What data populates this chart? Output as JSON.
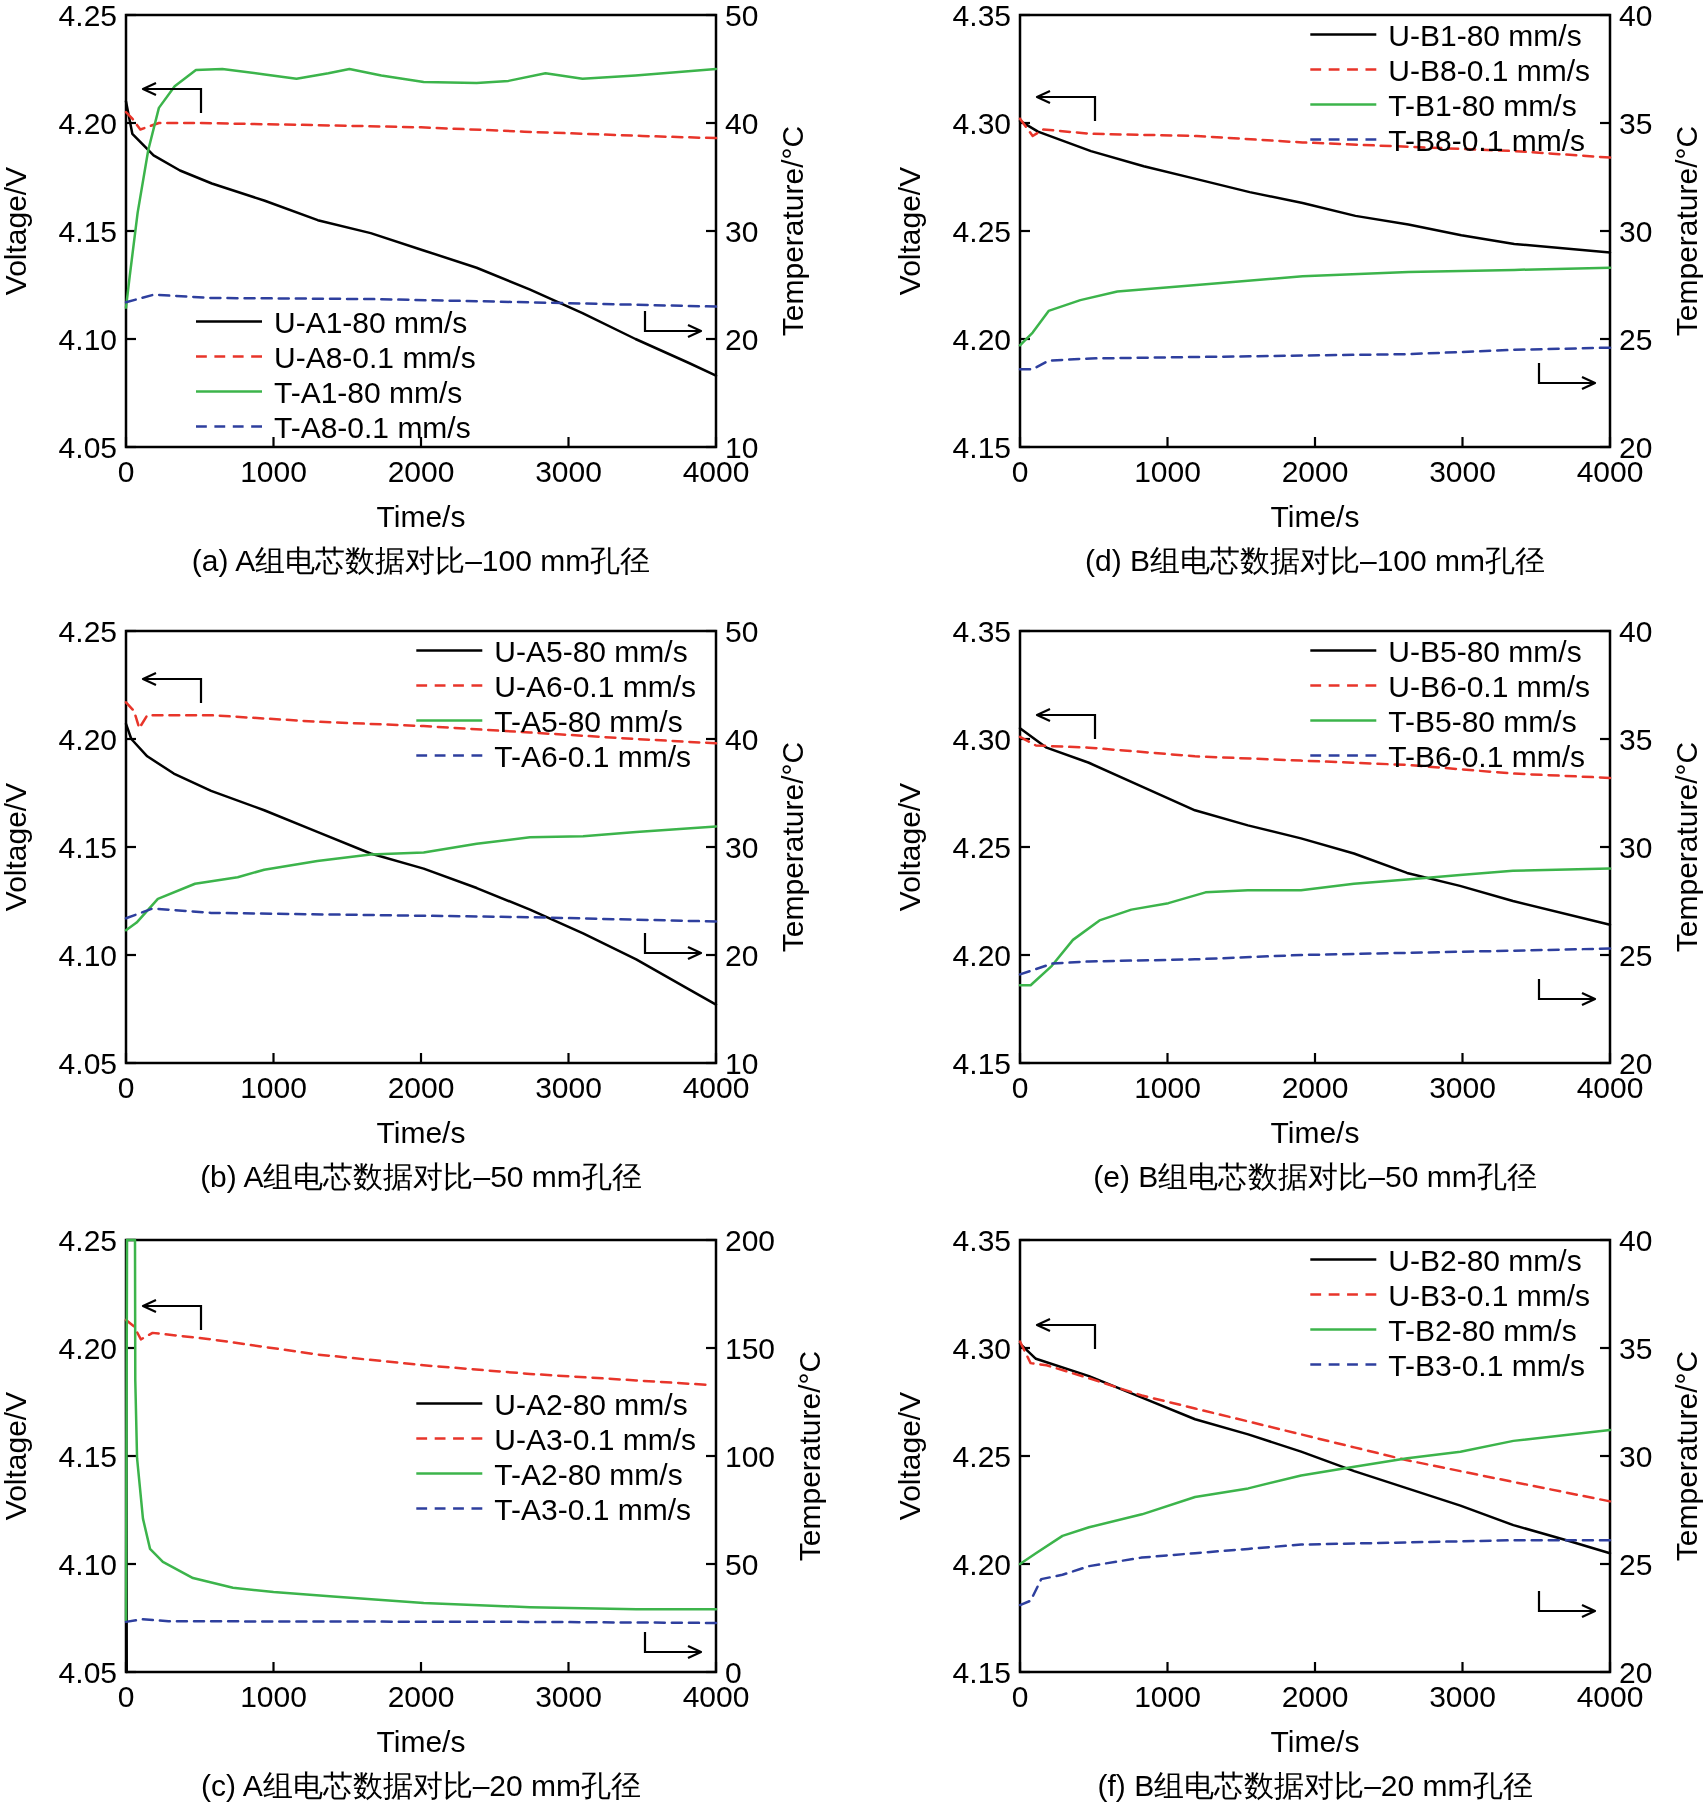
{
  "chart_data": [
    {
      "type": "line",
      "title": "(a) A组电芯数据对比–100 mm孔径",
      "xlabel": "Time/s",
      "ylabel": "Voltage/V",
      "y2label": "Temperature/°C",
      "xlim": [
        0,
        4000
      ],
      "xticks": [
        0,
        1000,
        2000,
        3000,
        4000
      ],
      "ylim": [
        4.05,
        4.25
      ],
      "yticks": [
        4.05,
        {
          "value": 4.1,
          "label": "4.10"
        },
        4.15,
        {
          "value": 4.2,
          "label": "4.20"
        },
        4.25
      ],
      "y2lim": [
        10,
        50
      ],
      "y2ticks": [
        10,
        20,
        30,
        40,
        50
      ],
      "legend": "bottom left",
      "series": [
        {
          "name": "U-A1-80 mm/s",
          "color": "#000000",
          "line_style": "solid",
          "x": [
            0,
            43,
            187,
            366,
            582,
            941,
            1300,
            1659,
            2018,
            2377,
            2736,
            3095,
            3454,
            3813,
            4000
          ],
          "values": [
            4.21,
            4.195,
            4.185,
            4.178,
            4.172,
            4.164,
            4.155,
            4.149,
            4.141,
            4.133,
            4.123,
            4.112,
            4.1,
            4.089,
            4.083
          ]
        },
        {
          "name": "U-A8-0.1 mm/s",
          "color": "#e8352a",
          "line_style": "dashed",
          "x": [
            0,
            43,
            97,
            223,
            500,
            1300,
            2000,
            2700,
            3500,
            4000
          ],
          "values": [
            4.205,
            4.202,
            4.197,
            4.2,
            4.2,
            4.199,
            4.198,
            4.196,
            4.194,
            4.193
          ]
        },
        {
          "name": "T-A1-80 mm/s",
          "color": "#3cb44b",
          "line_style": "solid",
          "axis": "y2",
          "x": [
            0,
            25,
            79,
            151,
            223,
            330,
            474,
            653,
            941,
            1156,
            1372,
            1515,
            1731,
            2018,
            2377,
            2593,
            2844,
            3095,
            3454,
            4000
          ],
          "values": [
            22.9,
            25.8,
            31.7,
            37.5,
            41.4,
            43.4,
            44.9,
            45.0,
            44.5,
            44.1,
            44.6,
            45.0,
            44.4,
            43.8,
            43.7,
            43.9,
            44.6,
            44.1,
            44.4,
            45.0
          ]
        },
        {
          "name": "T-A8-0.1 mm/s",
          "color": "#2e3f9e",
          "line_style": "dashed",
          "axis": "y2",
          "x": [
            0,
            187,
            582,
            1659,
            2736,
            4000
          ],
          "values": [
            23.4,
            24.1,
            23.8,
            23.7,
            23.4,
            23.0
          ]
        }
      ]
    },
    {
      "type": "line",
      "title": "(d) B组电芯数据对比–100 mm孔径",
      "xlabel": "Time/s",
      "ylabel": "Voltage/V",
      "y2label": "Temperature/°C",
      "xlim": [
        0,
        4000
      ],
      "xticks": [
        0,
        1000,
        2000,
        3000,
        4000
      ],
      "ylim": [
        4.15,
        4.35
      ],
      "yticks": [
        4.15,
        {
          "value": 4.2,
          "label": "4.20"
        },
        4.25,
        {
          "value": 4.3,
          "label": "4.30"
        },
        4.35
      ],
      "y2lim": [
        20,
        40
      ],
      "y2ticks": [
        20,
        25,
        30,
        35,
        40
      ],
      "legend": "top right",
      "series": [
        {
          "name": "U-B1-80 mm/s",
          "color": "#000000",
          "line_style": "solid",
          "x": [
            0,
            122,
            481,
            839,
            1198,
            1557,
            1916,
            2274,
            2633,
            2992,
            3351,
            4000
          ],
          "values": [
            4.301,
            4.296,
            4.287,
            4.28,
            4.274,
            4.268,
            4.263,
            4.257,
            4.253,
            4.248,
            4.244,
            4.24
          ]
        },
        {
          "name": "U-B8-0.1 mm/s",
          "color": "#e8352a",
          "line_style": "dashed",
          "x": [
            0,
            86,
            158,
            481,
            1198,
            1916,
            2633,
            3351,
            4000
          ],
          "values": [
            4.302,
            4.294,
            4.297,
            4.295,
            4.294,
            4.291,
            4.289,
            4.287,
            4.284
          ]
        },
        {
          "name": "T-B1-80 mm/s",
          "color": "#3cb44b",
          "line_style": "solid",
          "axis": "y2",
          "x": [
            0,
            86,
            194,
            409,
            660,
            1198,
            1916,
            2633,
            3351,
            4000
          ],
          "values": [
            24.7,
            25.3,
            26.3,
            26.8,
            27.2,
            27.5,
            27.9,
            28.1,
            28.2,
            28.3
          ]
        },
        {
          "name": "T-B8-0.1 mm/s",
          "color": "#2e3f9e",
          "line_style": "dashed",
          "axis": "y2",
          "x": [
            0,
            86,
            194,
            481,
            1557,
            2633,
            3351,
            4000
          ],
          "values": [
            23.6,
            23.6,
            24.0,
            24.1,
            24.2,
            24.3,
            24.5,
            24.6
          ]
        }
      ]
    },
    {
      "type": "line",
      "title": "(b) A组电芯数据对比–50 mm孔径",
      "xlabel": "Time/s",
      "ylabel": "Voltage/V",
      "y2label": "Temperature/°C",
      "xlim": [
        0,
        4000
      ],
      "xticks": [
        0,
        1000,
        2000,
        3000,
        4000
      ],
      "ylim": [
        4.05,
        4.25
      ],
      "yticks": [
        4.05,
        {
          "value": 4.1,
          "label": "4.10"
        },
        4.15,
        {
          "value": 4.2,
          "label": "4.20"
        },
        4.25
      ],
      "y2lim": [
        10,
        50
      ],
      "y2ticks": [
        10,
        20,
        30,
        40,
        50
      ],
      "legend": "top right",
      "series": [
        {
          "name": "U-A5-80 mm/s",
          "color": "#000000",
          "line_style": "solid",
          "x": [
            0,
            36,
            144,
            324,
            577,
            937,
            1297,
            1658,
            2018,
            2378,
            2739,
            3099,
            3459,
            3820,
            4000
          ],
          "values": [
            4.207,
            4.2,
            4.192,
            4.184,
            4.176,
            4.167,
            4.157,
            4.147,
            4.14,
            4.131,
            4.121,
            4.11,
            4.098,
            4.084,
            4.077
          ]
        },
        {
          "name": "U-A6-0.1 mm/s",
          "color": "#e8352a",
          "line_style": "dashed",
          "x": [
            0,
            54,
            90,
            144,
            577,
            1297,
            2018,
            2739,
            3459,
            4000
          ],
          "values": [
            4.217,
            4.213,
            4.205,
            4.211,
            4.211,
            4.208,
            4.206,
            4.203,
            4.2,
            4.198
          ]
        },
        {
          "name": "T-A5-80 mm/s",
          "color": "#3cb44b",
          "line_style": "solid",
          "axis": "y2",
          "x": [
            0,
            72,
            216,
            468,
            757,
            937,
            1297,
            1658,
            2018,
            2378,
            2739,
            3099,
            3459,
            4000
          ],
          "values": [
            22.3,
            23.0,
            25.2,
            26.6,
            27.2,
            27.9,
            28.7,
            29.3,
            29.5,
            30.3,
            30.9,
            31.0,
            31.4,
            31.9
          ]
        },
        {
          "name": "T-A6-0.1 mm/s",
          "color": "#2e3f9e",
          "line_style": "dashed",
          "axis": "y2",
          "x": [
            0,
            180,
            577,
            1658,
            2739,
            4000
          ],
          "values": [
            23.4,
            24.3,
            23.9,
            23.7,
            23.5,
            23.1
          ]
        }
      ]
    },
    {
      "type": "line",
      "title": "(e) B组电芯数据对比–50 mm孔径",
      "xlabel": "Time/s",
      "ylabel": "Voltage/V",
      "y2label": "Temperature/°C",
      "xlim": [
        0,
        4000
      ],
      "xticks": [
        0,
        1000,
        2000,
        3000,
        4000
      ],
      "ylim": [
        4.15,
        4.35
      ],
      "yticks": [
        4.15,
        {
          "value": 4.2,
          "label": "4.20"
        },
        4.25,
        {
          "value": 4.3,
          "label": "4.30"
        },
        4.35
      ],
      "y2lim": [
        20,
        40
      ],
      "y2ticks": [
        20,
        25,
        30,
        35,
        40
      ],
      "legend": "top right",
      "series": [
        {
          "name": "U-B5-80 mm/s",
          "color": "#000000",
          "line_style": "solid",
          "x": [
            0,
            180,
            467,
            827,
            1186,
            1545,
            1905,
            2264,
            2624,
            2983,
            3342,
            4000
          ],
          "values": [
            4.305,
            4.296,
            4.289,
            4.278,
            4.267,
            4.26,
            4.254,
            4.247,
            4.238,
            4.232,
            4.225,
            4.214
          ]
        },
        {
          "name": "U-B6-0.1 mm/s",
          "color": "#e8352a",
          "line_style": "dashed",
          "x": [
            0,
            108,
            467,
            1186,
            1905,
            2624,
            3342,
            4000
          ],
          "values": [
            4.301,
            4.297,
            4.296,
            4.292,
            4.29,
            4.288,
            4.284,
            4.282
          ]
        },
        {
          "name": "T-B5-80 mm/s",
          "color": "#3cb44b",
          "line_style": "solid",
          "axis": "y2",
          "x": [
            0,
            72,
            216,
            359,
            539,
            755,
            1006,
            1258,
            1545,
            1905,
            2264,
            2624,
            2983,
            3342,
            4000
          ],
          "values": [
            23.6,
            23.6,
            24.5,
            25.7,
            26.6,
            27.1,
            27.4,
            27.9,
            28.0,
            28.0,
            28.3,
            28.5,
            28.7,
            28.9,
            29.0
          ]
        },
        {
          "name": "T-B6-0.1 mm/s",
          "color": "#2e3f9e",
          "line_style": "dashed",
          "axis": "y2",
          "x": [
            0,
            216,
            467,
            1186,
            1905,
            2624,
            3342,
            4000
          ],
          "values": [
            24.1,
            24.6,
            24.7,
            24.8,
            25.0,
            25.1,
            25.2,
            25.3
          ]
        }
      ]
    },
    {
      "type": "line",
      "title": "(c) A组电芯数据对比–20 mm孔径",
      "xlabel": "Time/s",
      "ylabel": "Voltage/V",
      "y2label": "Temperature/°C",
      "xlim": [
        0,
        4000
      ],
      "xticks": [
        0,
        1000,
        2000,
        3000,
        4000
      ],
      "ylim": [
        4.05,
        4.25
      ],
      "yticks": [
        4.05,
        {
          "value": 4.1,
          "label": "4.10"
        },
        4.15,
        {
          "value": 4.2,
          "label": "4.20"
        },
        4.25
      ],
      "y2lim": [
        0,
        200
      ],
      "y2ticks": [
        0,
        50,
        100,
        150,
        200
      ],
      "legend": "right",
      "series": [
        {
          "name": "U-A2-80 mm/s",
          "color": "#000000",
          "line_style": "solid",
          "x": [
            0,
            5
          ],
          "values": [
            4.213,
            4.05
          ]
        },
        {
          "name": "U-A3-0.1 mm/s",
          "color": "#e8352a",
          "line_style": "dashed",
          "x": [
            0,
            54,
            101,
            180,
            577,
            1297,
            2018,
            2739,
            3459,
            3928
          ],
          "values": [
            4.213,
            4.21,
            4.204,
            4.207,
            4.204,
            4.197,
            4.192,
            4.188,
            4.185,
            4.183
          ]
        },
        {
          "name": "T-A2-80 mm/s",
          "color": "#3cb44b",
          "line_style": "solid",
          "axis": "y2",
          "x": [
            0,
            7,
            61,
            63,
            75,
            95,
            115,
            163,
            250,
            454,
            725,
            1000,
            1403,
            2018,
            2739,
            3460,
            4000
          ],
          "values": [
            24,
            200,
            200,
            135,
            99,
            85,
            71,
            57,
            51,
            43.5,
            39,
            37,
            35,
            32,
            30,
            29,
            29
          ]
        },
        {
          "name": "T-A3-0.1 mm/s",
          "color": "#2e3f9e",
          "line_style": "dashed",
          "axis": "y2",
          "x": [
            0,
            108,
            288,
            2739,
            4000
          ],
          "values": [
            23.2,
            24.4,
            23.5,
            23.2,
            22.7
          ]
        }
      ]
    },
    {
      "type": "line",
      "title": "(f) B组电芯数据对比–20 mm孔径",
      "xlabel": "Time/s",
      "ylabel": "Voltage/V",
      "y2label": "Temperature/°C",
      "xlim": [
        0,
        4000
      ],
      "xticks": [
        0,
        1000,
        2000,
        3000,
        4000
      ],
      "ylim": [
        4.15,
        4.35
      ],
      "yticks": [
        4.15,
        {
          "value": 4.2,
          "label": "4.20"
        },
        4.25,
        {
          "value": 4.3,
          "label": "4.30"
        },
        4.35
      ],
      "y2lim": [
        20,
        40
      ],
      "y2ticks": [
        20,
        25,
        30,
        35,
        40
      ],
      "legend": "top right",
      "series": [
        {
          "name": "U-B2-80 mm/s",
          "color": "#000000",
          "line_style": "solid",
          "x": [
            0,
            108,
            468,
            827,
            1187,
            1547,
            1906,
            2266,
            2626,
            2986,
            3345,
            3705,
            4000
          ],
          "values": [
            4.302,
            4.295,
            4.287,
            4.277,
            4.267,
            4.26,
            4.252,
            4.243,
            4.235,
            4.227,
            4.218,
            4.211,
            4.205
          ]
        },
        {
          "name": "U-B3-0.1 mm/s",
          "color": "#e8352a",
          "line_style": "dashed",
          "x": [
            0,
            72,
            180,
            468,
            827,
            1187,
            1547,
            1906,
            2266,
            2626,
            2986,
            3345,
            4000
          ],
          "values": [
            4.303,
            4.293,
            4.292,
            4.286,
            4.278,
            4.272,
            4.266,
            4.26,
            4.254,
            4.248,
            4.243,
            4.238,
            4.229
          ]
        },
        {
          "name": "T-B2-80 mm/s",
          "color": "#3cb44b",
          "line_style": "solid",
          "axis": "y2",
          "x": [
            0,
            108,
            288,
            468,
            827,
            1187,
            1547,
            1906,
            2266,
            2626,
            2986,
            3345,
            4000
          ],
          "values": [
            25.0,
            25.5,
            26.3,
            26.7,
            27.3,
            28.1,
            28.5,
            29.1,
            29.5,
            29.9,
            30.2,
            30.7,
            31.2
          ]
        },
        {
          "name": "T-B3-0.1 mm/s",
          "color": "#2e3f9e",
          "line_style": "dashed",
          "axis": "y2",
          "x": [
            0,
            72,
            144,
            288,
            468,
            827,
            1187,
            1547,
            1906,
            2626,
            3345,
            4000
          ],
          "values": [
            23.1,
            23.3,
            24.3,
            24.5,
            24.9,
            25.3,
            25.5,
            25.7,
            25.9,
            26.0,
            26.1,
            26.1
          ]
        }
      ]
    }
  ]
}
